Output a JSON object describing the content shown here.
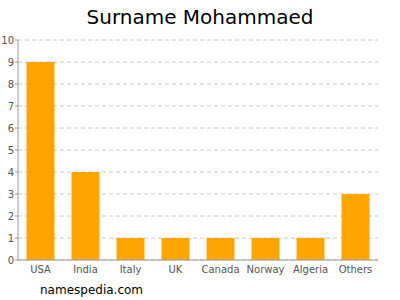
{
  "chart_data": {
    "type": "bar",
    "title": "Surname Mohammaed",
    "categories": [
      "USA",
      "India",
      "Italy",
      "UK",
      "Canada",
      "Norway",
      "Algeria",
      "Others"
    ],
    "values": [
      9,
      4,
      1,
      1,
      1,
      1,
      1,
      3
    ],
    "color": "#ffa500",
    "ylim": [
      0,
      10
    ],
    "yticks": [
      0,
      1,
      2,
      3,
      4,
      5,
      6,
      7,
      8,
      9,
      10
    ],
    "grid": true,
    "source": "namespedia.com"
  }
}
